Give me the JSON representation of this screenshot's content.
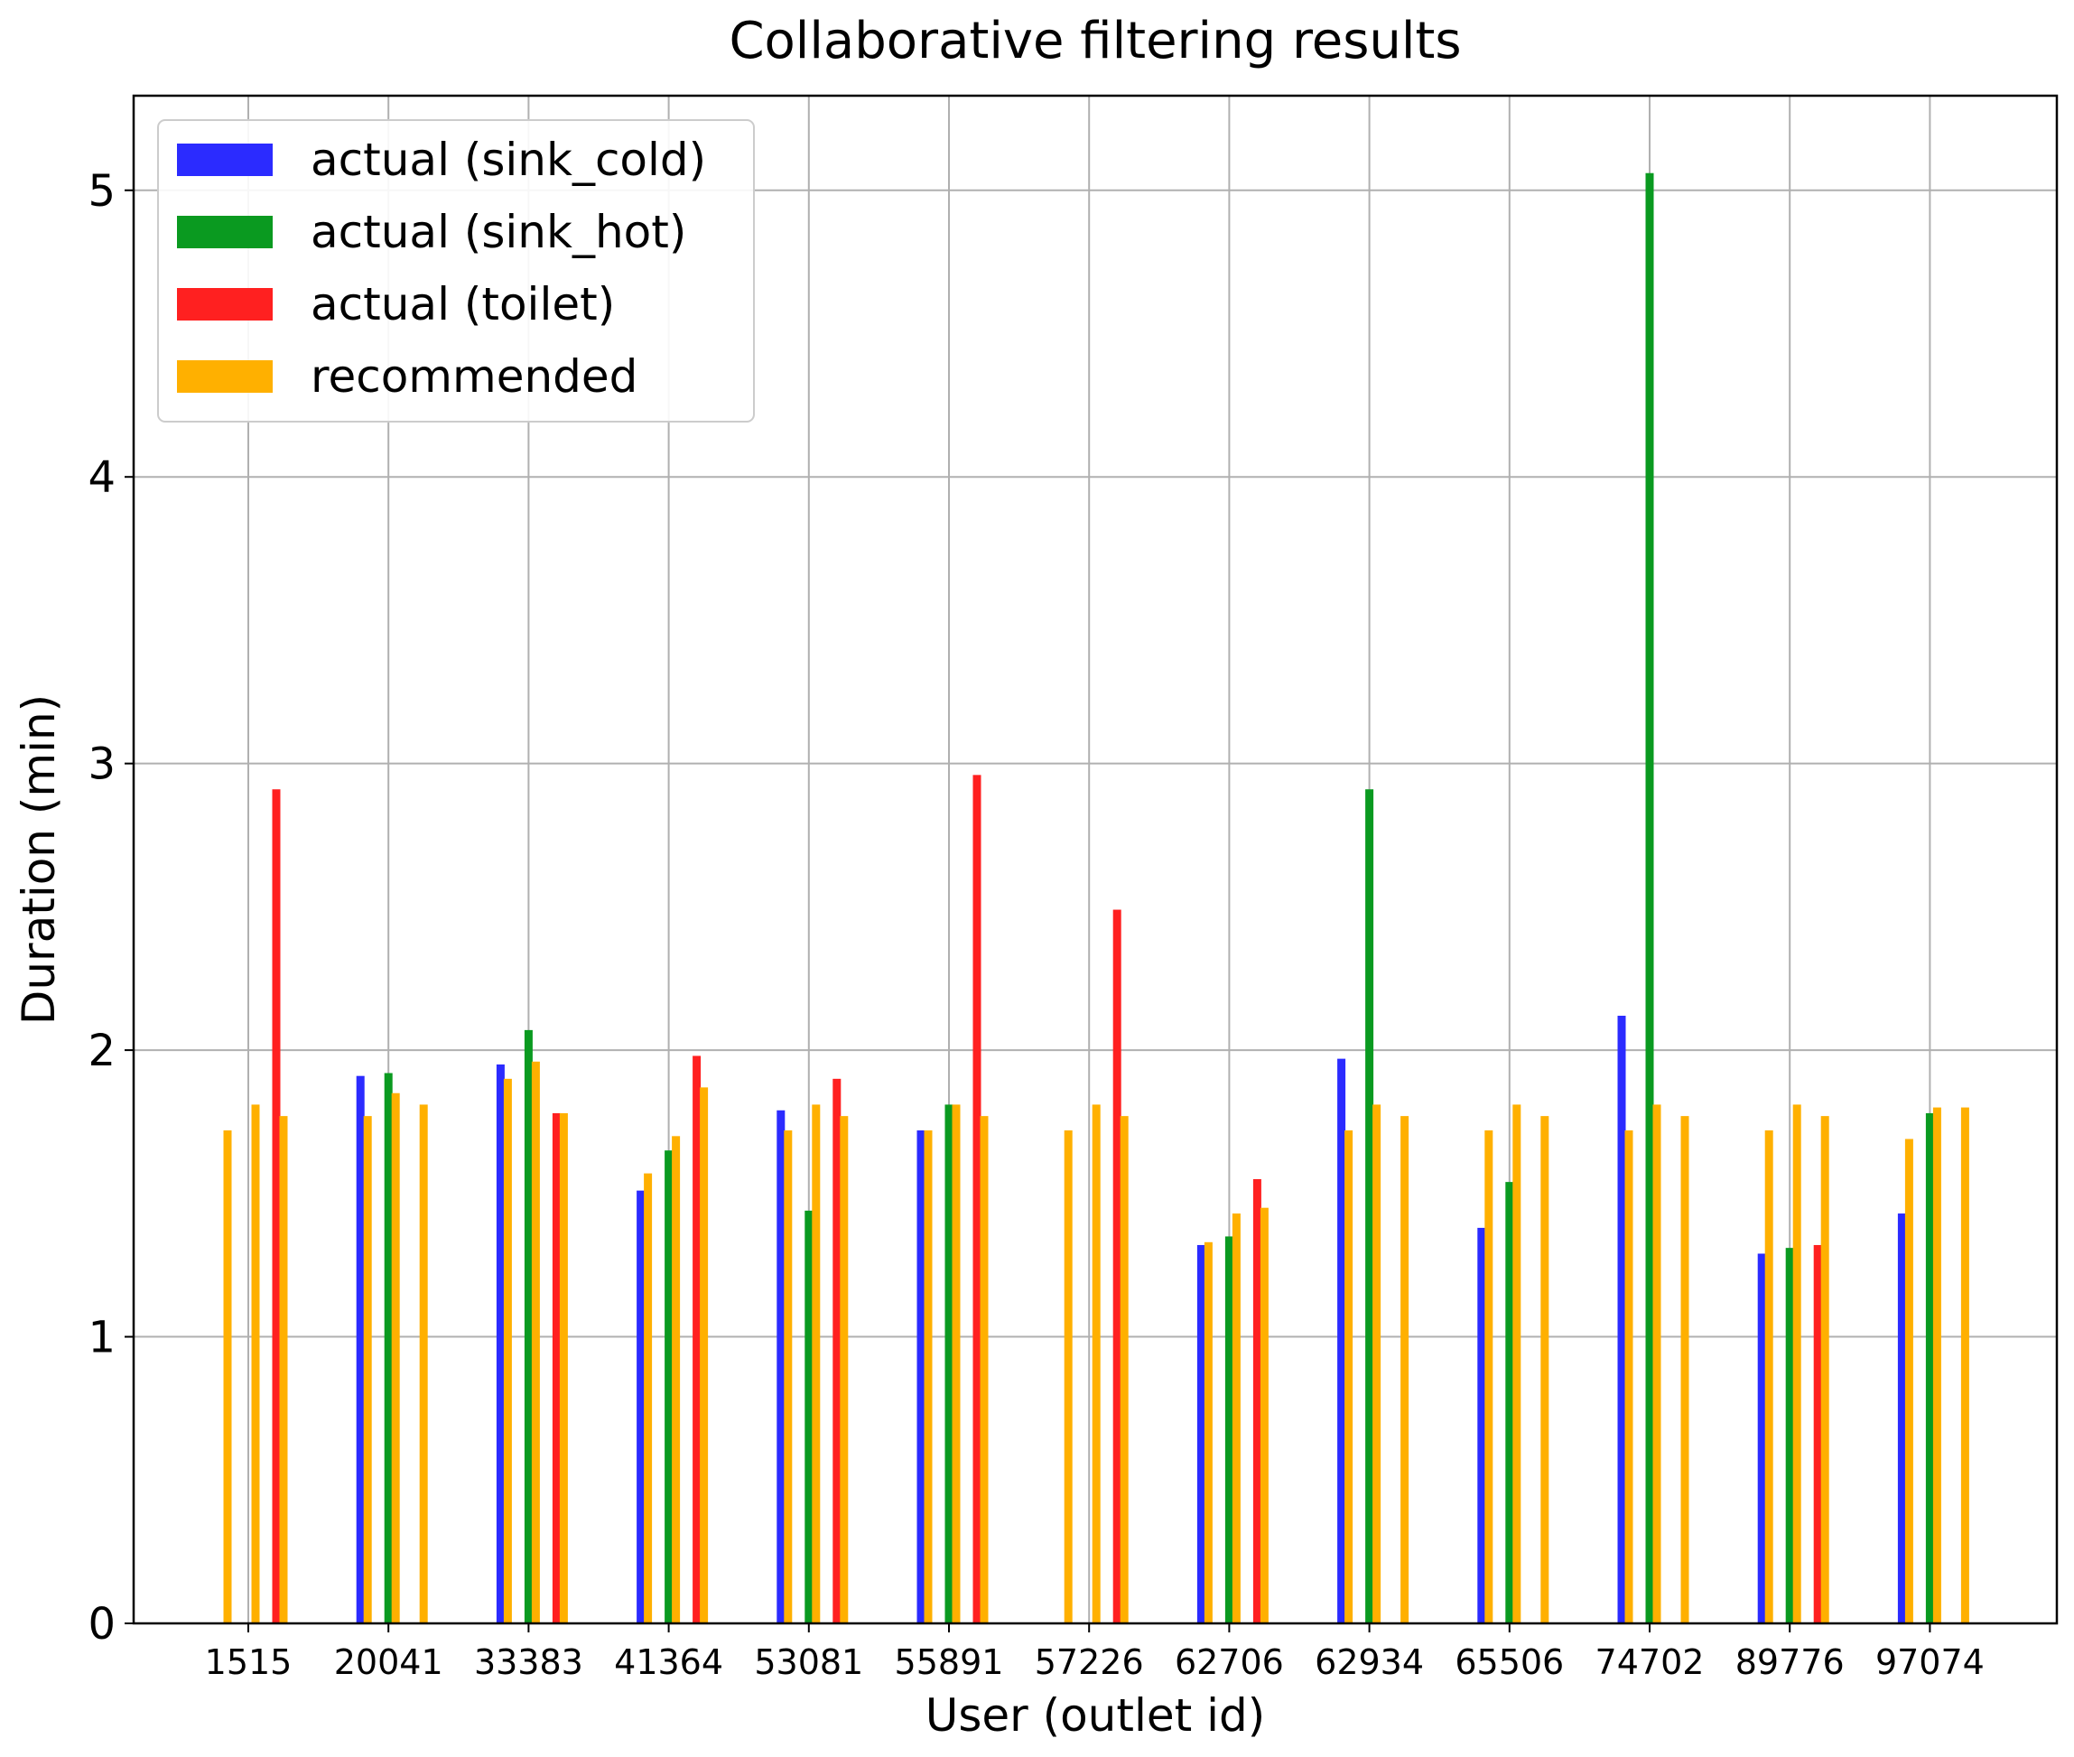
{
  "chart_data": {
    "type": "bar",
    "title": "Collaborative filtering results",
    "xlabel": "User (outlet id)",
    "ylabel": "Duration (min)",
    "ylim": [
      0,
      5.33
    ],
    "yticks": [
      0,
      1,
      2,
      3,
      4,
      5
    ],
    "grid": true,
    "legend_position": "top-left",
    "categories": [
      "1515",
      "20041",
      "33383",
      "41364",
      "53081",
      "55891",
      "57226",
      "62706",
      "62934",
      "65506",
      "74702",
      "89776",
      "97074"
    ],
    "groups": [
      {
        "name": "actual (sink_cold)",
        "color": "#2b2bff",
        "values": [
          null,
          1.91,
          1.95,
          1.51,
          1.79,
          1.72,
          null,
          1.32,
          1.97,
          1.38,
          2.12,
          1.29,
          1.43
        ],
        "recommended": [
          1.72,
          1.77,
          1.9,
          1.57,
          1.72,
          1.72,
          1.72,
          1.33,
          1.72,
          1.72,
          1.72,
          1.72,
          1.69
        ]
      },
      {
        "name": "actual (sink_hot)",
        "color": "#0a9a20",
        "values": [
          null,
          1.92,
          2.07,
          1.65,
          1.44,
          1.81,
          null,
          1.35,
          2.91,
          1.54,
          5.06,
          1.31,
          1.78
        ],
        "recommended": [
          1.81,
          1.85,
          1.96,
          1.7,
          1.81,
          1.81,
          1.81,
          1.43,
          1.81,
          1.81,
          1.81,
          1.81,
          1.8
        ]
      },
      {
        "name": "actual (toilet)",
        "color": "#ff2020",
        "values": [
          2.91,
          null,
          1.78,
          1.98,
          1.9,
          2.96,
          2.49,
          1.55,
          null,
          null,
          null,
          1.32,
          null
        ],
        "recommended": [
          1.77,
          1.81,
          1.78,
          1.87,
          1.77,
          1.77,
          1.77,
          1.45,
          1.77,
          1.77,
          1.77,
          1.77,
          1.8
        ]
      }
    ],
    "series": [
      {
        "name": "actual (sink_cold)",
        "color": "#2b2bff"
      },
      {
        "name": "actual (sink_hot)",
        "color": "#0a9a20"
      },
      {
        "name": "actual (toilet)",
        "color": "#ff2020"
      },
      {
        "name": "recommended",
        "color": "#ffb000"
      }
    ]
  }
}
